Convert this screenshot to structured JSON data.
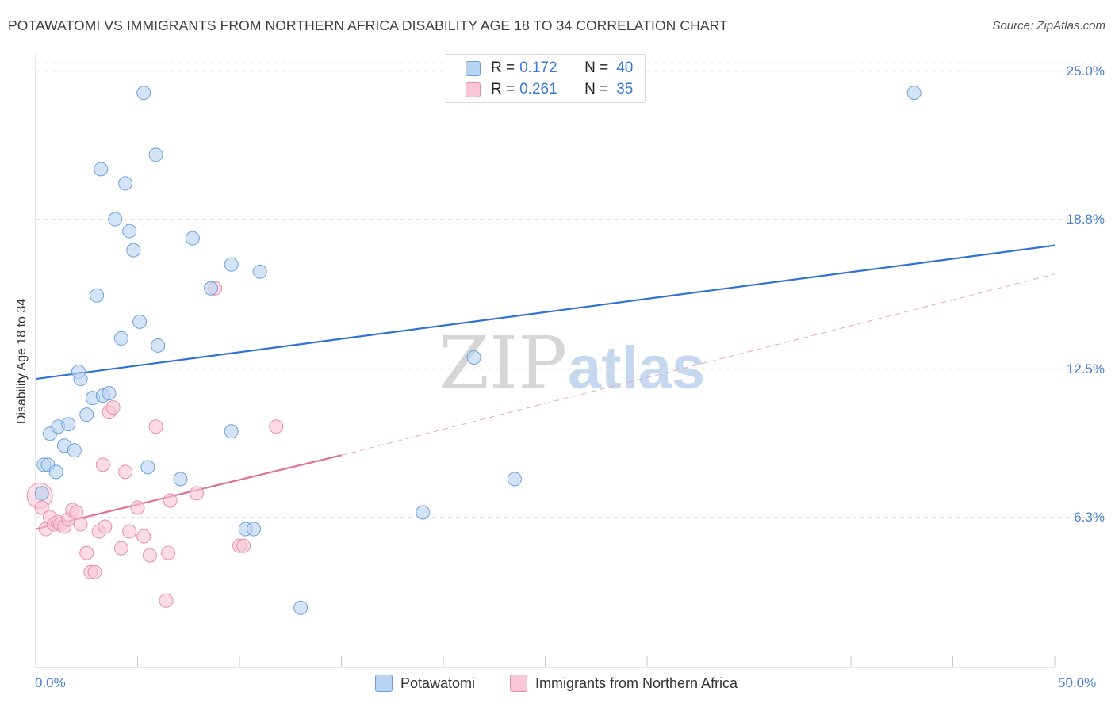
{
  "header": {
    "title": "POTAWATOMI VS IMMIGRANTS FROM NORTHERN AFRICA DISABILITY AGE 18 TO 34 CORRELATION CHART",
    "source": "Source: ZipAtlas.com"
  },
  "watermark": {
    "zip": "ZIP",
    "atlas": "atlas"
  },
  "legend_top": [
    {
      "r_label": "R =",
      "r_value": "0.172",
      "n_label": "N =",
      "n_value": "40"
    },
    {
      "r_label": "R =",
      "r_value": "0.261",
      "n_label": "N =",
      "n_value": "35"
    }
  ],
  "colors": {
    "blue_fill": "#b9d3f3",
    "blue_stroke": "#6d9fde",
    "blue_line": "#2f72d4",
    "pink_fill": "#f8c6d5",
    "pink_stroke": "#e68ea9",
    "pink_line": "#e0709a",
    "grid": "#e2e2e2",
    "tick_text": "#4a7fcf"
  },
  "chart_data": {
    "type": "scatter",
    "title": "POTAWATOMI VS IMMIGRANTS FROM NORTHERN AFRICA DISABILITY AGE 18 TO 34 CORRELATION CHART",
    "xlabel": "",
    "ylabel": "Disability Age 18 to 34",
    "xlim": [
      0,
      50
    ],
    "ylim": [
      0,
      25.6
    ],
    "x_tick_labels": [
      "0.0%",
      "50.0%"
    ],
    "y_ticks": [
      6.3,
      12.5,
      18.8,
      25.0
    ],
    "y_tick_labels": [
      "6.3%",
      "12.5%",
      "18.8%",
      "25.0%"
    ],
    "grid": true,
    "legend_position": "bottom-center",
    "series": [
      {
        "name": "Potawatomi",
        "color": "blue",
        "r": 0.172,
        "n": 40,
        "trend": {
          "x": [
            0,
            50
          ],
          "y": [
            12.1,
            17.7
          ],
          "style": "solid"
        },
        "points": [
          [
            0.3,
            7.3
          ],
          [
            0.4,
            8.5
          ],
          [
            0.6,
            8.5
          ],
          [
            0.7,
            9.8
          ],
          [
            1.0,
            8.2
          ],
          [
            1.1,
            10.1
          ],
          [
            1.4,
            9.3
          ],
          [
            1.6,
            10.2
          ],
          [
            1.9,
            9.1
          ],
          [
            2.1,
            12.4
          ],
          [
            2.2,
            12.1
          ],
          [
            2.5,
            10.6
          ],
          [
            2.8,
            11.3
          ],
          [
            3.0,
            15.6
          ],
          [
            3.2,
            20.9
          ],
          [
            3.3,
            11.4
          ],
          [
            3.6,
            11.5
          ],
          [
            3.9,
            18.8
          ],
          [
            4.2,
            13.8
          ],
          [
            4.4,
            20.3
          ],
          [
            4.6,
            18.3
          ],
          [
            4.8,
            17.5
          ],
          [
            5.1,
            14.5
          ],
          [
            5.3,
            24.1
          ],
          [
            5.5,
            8.4
          ],
          [
            5.9,
            21.5
          ],
          [
            6.0,
            13.5
          ],
          [
            7.1,
            7.9
          ],
          [
            7.7,
            18.0
          ],
          [
            8.6,
            15.9
          ],
          [
            9.6,
            16.9
          ],
          [
            9.6,
            9.9
          ],
          [
            10.3,
            5.8
          ],
          [
            10.7,
            5.8
          ],
          [
            11.0,
            16.6
          ],
          [
            13.0,
            2.5
          ],
          [
            19.0,
            6.5
          ],
          [
            21.5,
            13.0
          ],
          [
            23.5,
            7.9
          ],
          [
            43.1,
            24.1
          ]
        ]
      },
      {
        "name": "Immigrants from Northern Africa",
        "color": "pink",
        "r": 0.261,
        "n": 35,
        "trend": {
          "x": [
            0,
            15
          ],
          "y": [
            5.8,
            8.9
          ],
          "style": "solid",
          "dashed_extension": {
            "x": [
              15,
              50
            ],
            "y": [
              8.9,
              16.5
            ]
          }
        },
        "points": [
          [
            0.2,
            7.2
          ],
          [
            0.3,
            6.7
          ],
          [
            0.5,
            5.8
          ],
          [
            0.7,
            6.3
          ],
          [
            0.9,
            6.0
          ],
          [
            1.1,
            6.1
          ],
          [
            1.2,
            6.0
          ],
          [
            1.4,
            5.9
          ],
          [
            1.6,
            6.2
          ],
          [
            1.8,
            6.6
          ],
          [
            2.0,
            6.5
          ],
          [
            2.2,
            6.0
          ],
          [
            2.5,
            4.8
          ],
          [
            2.7,
            4.0
          ],
          [
            2.9,
            4.0
          ],
          [
            3.1,
            5.7
          ],
          [
            3.3,
            8.5
          ],
          [
            3.4,
            5.9
          ],
          [
            3.6,
            10.7
          ],
          [
            3.8,
            10.9
          ],
          [
            4.2,
            5.0
          ],
          [
            4.4,
            8.2
          ],
          [
            4.6,
            5.7
          ],
          [
            5.0,
            6.7
          ],
          [
            5.3,
            5.5
          ],
          [
            5.6,
            4.7
          ],
          [
            5.9,
            10.1
          ],
          [
            6.4,
            2.8
          ],
          [
            6.5,
            4.8
          ],
          [
            6.6,
            7.0
          ],
          [
            7.9,
            7.3
          ],
          [
            8.8,
            15.9
          ],
          [
            10.0,
            5.1
          ],
          [
            10.2,
            5.1
          ],
          [
            11.8,
            10.1
          ]
        ]
      }
    ]
  },
  "legend_bottom": [
    {
      "label": "Potawatomi"
    },
    {
      "label": "Immigrants from Northern Africa"
    }
  ]
}
